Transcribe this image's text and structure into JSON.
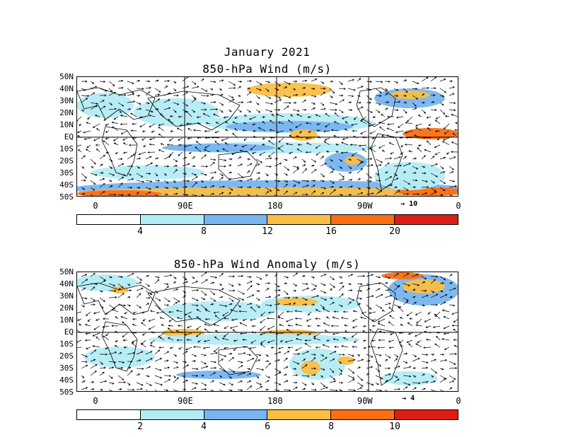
{
  "panel_top": {
    "title_line1": "January 2021",
    "title_line2": "850-hPa Wind (m/s)",
    "ref_vector_label": "10",
    "colorbar_labels": [
      "4",
      "8",
      "12",
      "16",
      "20"
    ]
  },
  "panel_bottom": {
    "title": "850-hPa Wind Anomaly (m/s)",
    "ref_vector_label": "4",
    "colorbar_labels": [
      "2",
      "4",
      "6",
      "8",
      "10"
    ]
  },
  "lat_labels": [
    "50N",
    "40N",
    "30N",
    "20N",
    "10N",
    "EQ",
    "10S",
    "20S",
    "30S",
    "40S",
    "50S"
  ],
  "lon_labels": [
    "0",
    "90E",
    "180",
    "90W",
    "0"
  ],
  "colors": {
    "level0": "#ffffff",
    "level1": "#b4ecf5",
    "level2": "#78b4f0",
    "level3": "#fabe46",
    "level4": "#fa6e14",
    "level5": "#dc1e14"
  }
}
